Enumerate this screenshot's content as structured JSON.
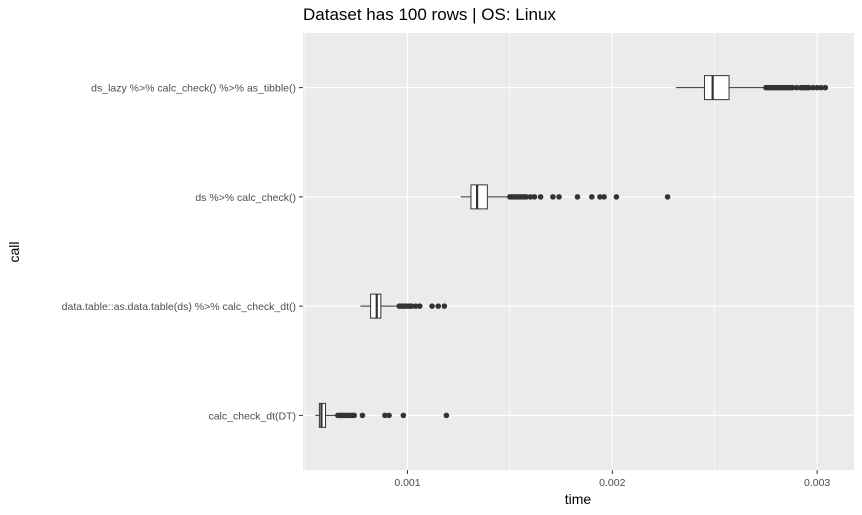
{
  "chart_data": {
    "type": "boxplot",
    "title": "Dataset has 100 rows | OS: Linux",
    "xlabel": "time",
    "ylabel": "call",
    "xlim": [
      0.00049,
      0.00318
    ],
    "x_ticks": [
      0.001,
      0.002,
      0.003
    ],
    "x_tick_labels": [
      "0.001",
      "0.002",
      "0.003"
    ],
    "grid": true,
    "legend": "none",
    "colors": {
      "panel_background": "#ebebeb",
      "grid": "#ffffff",
      "box_fill": "#ffffff",
      "box_line": "#333333",
      "outlier": "#333333"
    },
    "categories": [
      "ds_lazy %>% calc_check() %>% as_tibble()",
      "ds %>% calc_check()",
      "data.table::as.data.table(ds) %>% calc_check_dt()",
      "calc_check_dt(DT)"
    ],
    "series": [
      {
        "category": "ds_lazy %>% calc_check() %>% as_tibble()",
        "whisker_low": 0.00231,
        "q1": 0.00245,
        "median": 0.00249,
        "q3": 0.00257,
        "whisker_high": 0.00275,
        "outliers": [
          0.00275,
          0.00276,
          0.00277,
          0.00278,
          0.00279,
          0.0028,
          0.00281,
          0.00282,
          0.00283,
          0.00284,
          0.00285,
          0.00286,
          0.00287,
          0.00288,
          0.0029,
          0.00292,
          0.00293,
          0.00294,
          0.00295,
          0.00296,
          0.00298,
          0.003,
          0.00302,
          0.00304
        ]
      },
      {
        "category": "ds %>% calc_check()",
        "whisker_low": 0.00126,
        "q1": 0.00131,
        "median": 0.00134,
        "q3": 0.00139,
        "whisker_high": 0.0015,
        "outliers": [
          0.0015,
          0.00151,
          0.00152,
          0.00153,
          0.00154,
          0.00155,
          0.00156,
          0.00157,
          0.00158,
          0.0016,
          0.00162,
          0.00165,
          0.00171,
          0.00174,
          0.00183,
          0.0019,
          0.00194,
          0.00196,
          0.00202,
          0.00227
        ]
      },
      {
        "category": "data.table::as.data.table(ds) %>% calc_check_dt()",
        "whisker_low": 0.00077,
        "q1": 0.00082,
        "median": 0.00085,
        "q3": 0.00087,
        "whisker_high": 0.00095,
        "outliers": [
          0.00096,
          0.00097,
          0.00098,
          0.00099,
          0.001,
          0.00101,
          0.00102,
          0.00104,
          0.00106,
          0.00112,
          0.00115,
          0.00118
        ]
      },
      {
        "category": "calc_check_dt(DT)",
        "whisker_low": 0.00055,
        "q1": 0.00057,
        "median": 0.00058,
        "q3": 0.0006,
        "whisker_high": 0.00065,
        "outliers": [
          0.00066,
          0.00067,
          0.00068,
          0.00069,
          0.0007,
          0.00071,
          0.00072,
          0.00073,
          0.00074,
          0.00078,
          0.00089,
          0.00091,
          0.00098,
          0.00119
        ]
      }
    ]
  }
}
